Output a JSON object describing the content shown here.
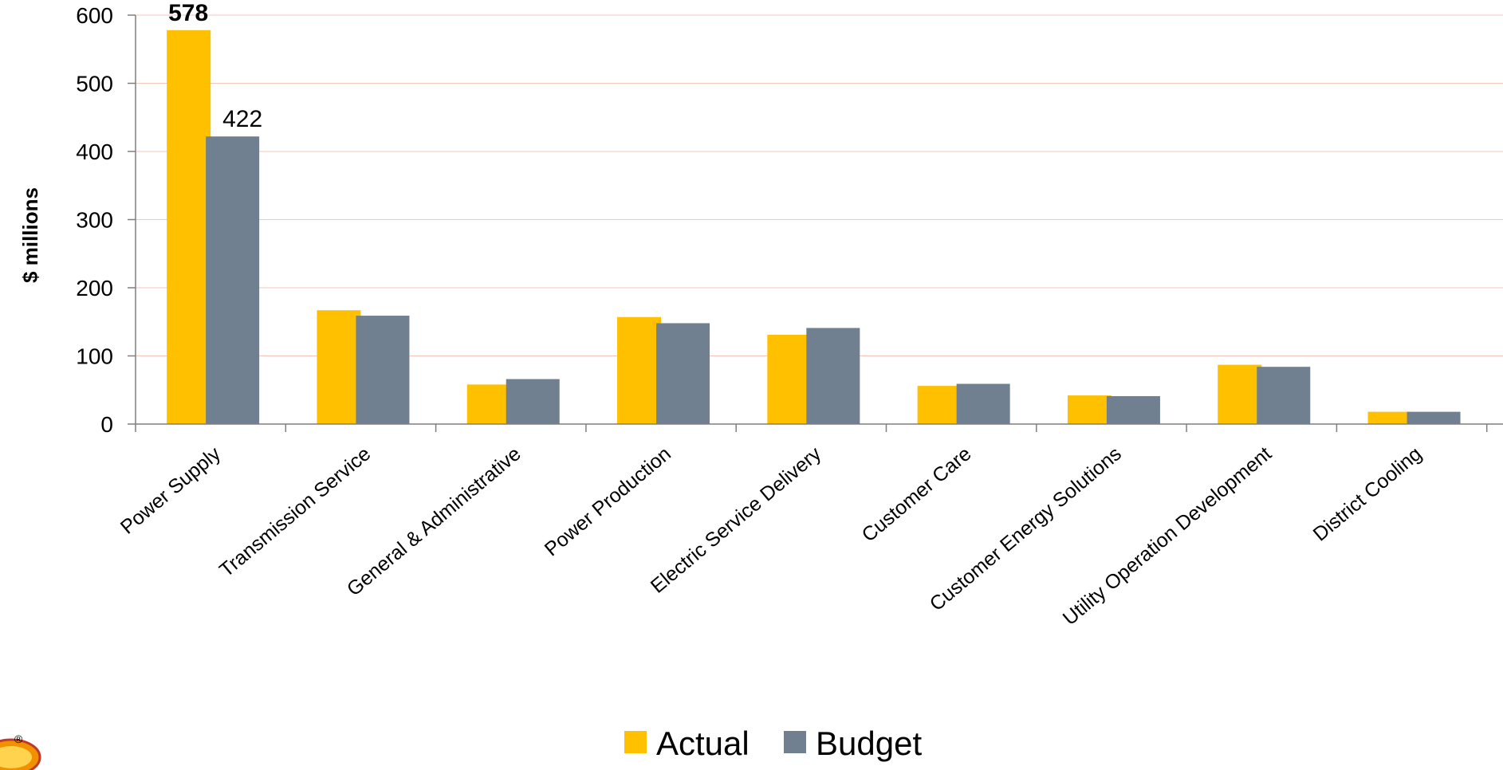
{
  "chart_data": {
    "type": "bar",
    "title": "",
    "xlabel": "",
    "ylabel": "$ millions",
    "ylim": [
      0,
      600
    ],
    "yticks": [
      0,
      100,
      200,
      300,
      400,
      500,
      600
    ],
    "grid": true,
    "legend_position": "bottom",
    "categories": [
      "Power Supply",
      "Transmission Service",
      "General & Administrative",
      "Power Production",
      "Electric Service Delivery",
      "Customer Care",
      "Customer Energy Solutions",
      "Utility Operation Development",
      "District Cooling"
    ],
    "series": [
      {
        "name": "Actual",
        "color": "#FFC000",
        "values": [
          578,
          167,
          58,
          157,
          131,
          56,
          42,
          87,
          18
        ]
      },
      {
        "name": "Budget",
        "color": "#708090",
        "values": [
          422,
          159,
          66,
          148,
          141,
          59,
          41,
          84,
          18
        ]
      }
    ],
    "data_labels": [
      {
        "series": 0,
        "index": 0,
        "text": "578",
        "bold": true
      },
      {
        "series": 1,
        "index": 0,
        "text": "422",
        "bold": false
      }
    ]
  },
  "logo": {
    "reg_mark": "®"
  }
}
